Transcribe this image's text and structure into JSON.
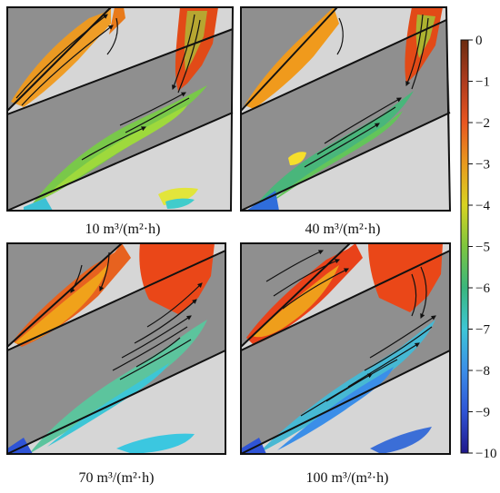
{
  "figure": {
    "colors": {
      "background": "#ffffff",
      "gray_blade": "#8f8f8f",
      "light_region": "#d6d6d6",
      "outline": "#111111",
      "streamline": "#111111"
    },
    "panels": [
      {
        "label": "10 m³/(m²·h)"
      },
      {
        "label": "40 m³/(m²·h)"
      },
      {
        "label": "70 m³/(m²·h)"
      },
      {
        "label": "100 m³/(m²·h)"
      }
    ],
    "colorbar": {
      "range": [
        -10,
        0
      ],
      "ticks": [
        {
          "value": 0,
          "label": "0"
        },
        {
          "value": -1,
          "label": "−1"
        },
        {
          "value": -2,
          "label": "−2"
        },
        {
          "value": -3,
          "label": "−3"
        },
        {
          "value": -4,
          "label": "−4"
        },
        {
          "value": -5,
          "label": "−5"
        },
        {
          "value": -6,
          "label": "−6"
        },
        {
          "value": -7,
          "label": "−7"
        },
        {
          "value": -8,
          "label": "−8"
        },
        {
          "value": -9,
          "label": "−9"
        },
        {
          "value": -10,
          "label": "−10"
        }
      ],
      "gradient": [
        {
          "offset": "0%",
          "color": "#6b2c10"
        },
        {
          "offset": "10%",
          "color": "#ae3b1e"
        },
        {
          "offset": "20%",
          "color": "#e85620"
        },
        {
          "offset": "30%",
          "color": "#e89a1e"
        },
        {
          "offset": "40%",
          "color": "#d8d321"
        },
        {
          "offset": "50%",
          "color": "#7dc63f"
        },
        {
          "offset": "60%",
          "color": "#39b67d"
        },
        {
          "offset": "70%",
          "color": "#3dc6d6"
        },
        {
          "offset": "80%",
          "color": "#3b8ee8"
        },
        {
          "offset": "90%",
          "color": "#2f54d6"
        },
        {
          "offset": "100%",
          "color": "#20188b"
        }
      ]
    }
  }
}
